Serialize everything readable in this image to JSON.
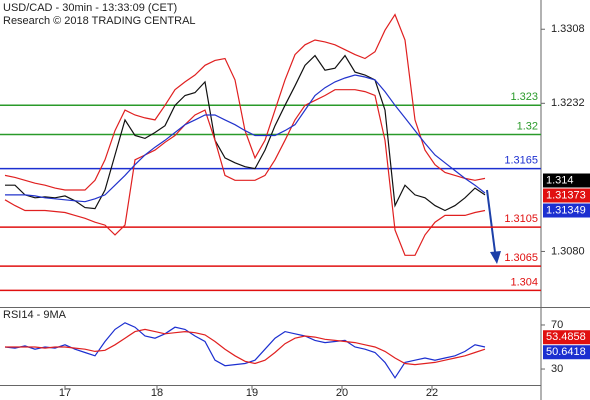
{
  "chart_data": {
    "type": "line",
    "title": "USD/CAD - 30min - 13:33:09 (CET)",
    "subtitle": "Research © 2018 TRADING CENTRAL",
    "x": [
      0,
      1,
      2,
      3,
      4,
      5,
      6,
      7,
      8,
      9,
      10,
      11,
      12,
      13,
      14,
      15,
      16,
      17,
      18,
      19,
      20,
      21,
      22,
      23,
      24,
      25,
      26,
      27,
      28,
      29,
      30,
      31,
      32,
      33,
      34,
      35,
      36,
      37,
      38,
      39,
      40,
      41,
      42,
      43,
      44,
      45,
      46,
      47,
      48
    ],
    "xlim": [
      -0.5,
      53.6
    ],
    "xticks": [
      {
        "value": 6,
        "label": "17"
      },
      {
        "value": 15.2,
        "label": "18"
      },
      {
        "value": 24.7,
        "label": "19"
      },
      {
        "value": 33.7,
        "label": "20"
      },
      {
        "value": 42.7,
        "label": "22"
      }
    ],
    "ylim": [
      1.3023,
      1.3338
    ],
    "yticks": [
      1.3308,
      1.3232,
      {
        "value": 1.308,
        "label": "1.3080"
      }
    ],
    "series": [
      {
        "color": "#111111",
        "values": [
          1.3148,
          1.3148,
          1.3138,
          1.3135,
          1.3136,
          1.3135,
          1.3137,
          1.3132,
          1.3125,
          1.3124,
          1.3143,
          1.3179,
          1.3215,
          1.3199,
          1.3196,
          1.3202,
          1.3209,
          1.323,
          1.324,
          1.3243,
          1.3254,
          1.3194,
          1.3176,
          1.3171,
          1.3167,
          1.3165,
          1.3184,
          1.3209,
          1.323,
          1.325,
          1.3271,
          1.3281,
          1.3266,
          1.3268,
          1.3281,
          1.3264,
          1.3261,
          1.3256,
          1.3225,
          1.3127,
          1.3148,
          1.3138,
          1.3135,
          1.3127,
          1.3122,
          1.3127,
          1.3135,
          1.3145,
          1.3138
        ]
      },
      {
        "color": "#e02020",
        "values": [
          1.3158,
          1.3156,
          1.3153,
          1.315,
          1.3148,
          1.3145,
          1.3143,
          1.3143,
          1.3143,
          1.3153,
          1.3174,
          1.3204,
          1.3225,
          1.322,
          1.3217,
          1.3215,
          1.323,
          1.3246,
          1.3254,
          1.3261,
          1.3271,
          1.3276,
          1.3278,
          1.3256,
          1.3204,
          1.3176,
          1.3194,
          1.3225,
          1.3256,
          1.3282,
          1.3292,
          1.3297,
          1.3295,
          1.3292,
          1.3287,
          1.3282,
          1.3278,
          1.3285,
          1.3307,
          1.3323,
          1.3297,
          1.3215,
          1.3184,
          1.3169,
          1.3161,
          1.3158,
          1.3155,
          1.3153,
          1.3155
        ]
      },
      {
        "color": "#e02020",
        "values": [
          1.3133,
          1.3127,
          1.3122,
          1.3122,
          1.3122,
          1.3121,
          1.312,
          1.3117,
          1.3114,
          1.311,
          1.3107,
          1.3097,
          1.3107,
          1.3174,
          1.3179,
          1.3184,
          1.3192,
          1.3199,
          1.321,
          1.322,
          1.3225,
          1.3194,
          1.3158,
          1.3153,
          1.3153,
          1.3153,
          1.3158,
          1.3174,
          1.3194,
          1.3215,
          1.323,
          1.3235,
          1.324,
          1.3246,
          1.3246,
          1.3246,
          1.3244,
          1.324,
          1.3194,
          1.3102,
          1.3076,
          1.3076,
          1.3097,
          1.311,
          1.3117,
          1.3117,
          1.3117,
          1.312,
          1.3122
        ]
      },
      {
        "color": "#2233cc",
        "values": [
          1.3138,
          1.3138,
          1.3138,
          1.3137,
          1.3135,
          1.3134,
          1.3133,
          1.3132,
          1.3131,
          1.3134,
          1.3138,
          1.3148,
          1.3158,
          1.3169,
          1.3179,
          1.3187,
          1.3194,
          1.3202,
          1.321,
          1.3215,
          1.322,
          1.322,
          1.3215,
          1.321,
          1.3204,
          1.3199,
          1.3199,
          1.3199,
          1.3204,
          1.321,
          1.3225,
          1.324,
          1.3248,
          1.3254,
          1.3258,
          1.3261,
          1.3259,
          1.3256,
          1.3244,
          1.323,
          1.3217,
          1.3204,
          1.3191,
          1.3179,
          1.3171,
          1.3163,
          1.3155,
          1.3148,
          1.314
        ]
      }
    ],
    "levels": [
      {
        "value": 1.323,
        "color": "#2a9a2a"
      },
      {
        "value": 1.32,
        "color": "#2a9a2a"
      },
      {
        "value": 1.3165,
        "color": "#1c2fd0"
      },
      {
        "value": 1.3105,
        "color": "#e01010"
      },
      {
        "value": 1.3065,
        "color": "#e01010"
      },
      {
        "value": 1.304,
        "color": "#e01010"
      }
    ],
    "price_tags": [
      {
        "value": 1.314,
        "color": "#000000"
      },
      {
        "value": 1.31373,
        "color": "#e01010"
      },
      {
        "value": 1.31349,
        "color": "#1c2fd0"
      }
    ],
    "rsi": {
      "title": "RSI14 - 9MA",
      "ylim": [
        15.5,
        83.6
      ],
      "yticks": [
        70,
        30
      ],
      "series": [
        {
          "color": "#1c2fd0",
          "values": [
            50,
            49,
            51,
            48,
            50,
            49,
            52,
            48,
            45,
            42,
            55,
            66,
            72,
            68,
            60,
            58,
            62,
            68,
            66,
            60,
            55,
            38,
            33,
            34,
            35,
            38,
            48,
            58,
            64,
            62,
            60,
            56,
            54,
            55,
            56,
            50,
            48,
            45,
            36,
            22,
            36,
            38,
            40,
            38,
            40,
            42,
            46,
            52,
            50
          ]
        },
        {
          "color": "#e02020",
          "values": [
            50,
            50,
            50,
            50,
            49,
            50,
            50,
            49,
            48,
            46,
            47,
            52,
            58,
            64,
            66,
            64,
            62,
            63,
            64,
            63,
            61,
            55,
            48,
            42,
            37,
            35,
            38,
            45,
            53,
            58,
            60,
            59,
            57,
            56,
            55,
            54,
            52,
            50,
            46,
            40,
            35,
            34,
            35,
            36,
            38,
            40,
            42,
            45,
            48
          ]
        }
      ],
      "tags": [
        {
          "value": 53.4858,
          "color": "#e01010"
        },
        {
          "value": 50.6418,
          "color": "#1c2fd0"
        }
      ]
    }
  }
}
